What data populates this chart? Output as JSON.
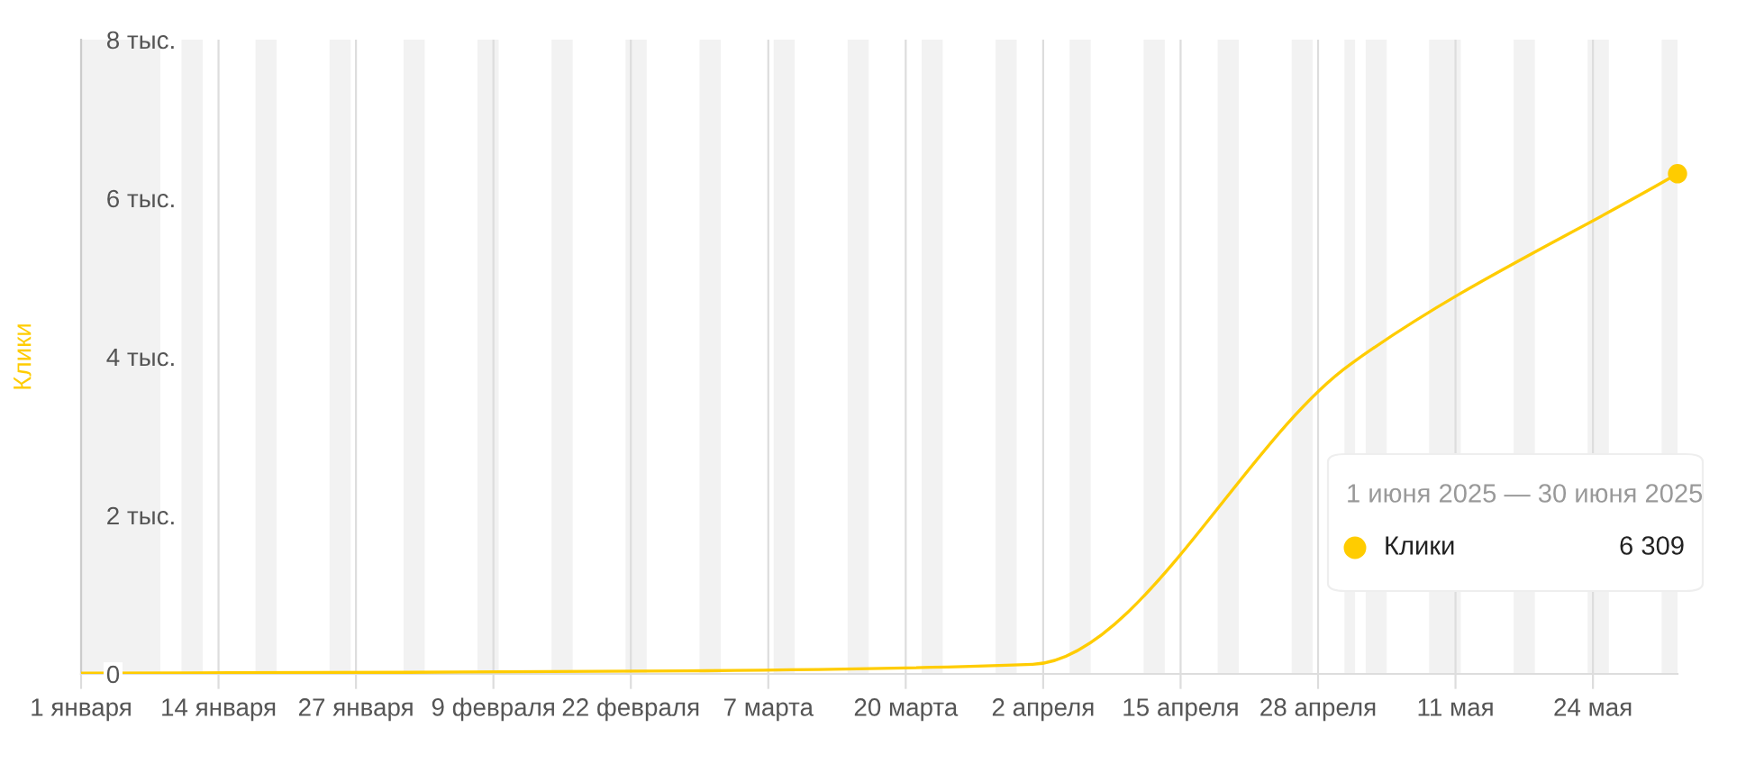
{
  "chart_data": {
    "type": "line",
    "ylabel": "Клики",
    "legend_title": "1 июня 2025 — 30 июня 2025",
    "legend": "right",
    "x": [
      "2025-01-01",
      "2025-02-01",
      "2025-03-01",
      "2025-04-01",
      "2025-05-01",
      "2025-06-01"
    ],
    "series": [
      {
        "name": "Клики",
        "color": "#ffcc00",
        "values": [
          0.01,
          0.02,
          0.04,
          0.12,
          3.9,
          6.309
        ]
      },
      {
        "type": "scatter",
        "marker": "circle",
        "color": "#ffcc00",
        "x": [
          "2025-06-01"
        ],
        "values": [
          6.309
        ]
      }
    ],
    "annotations": [
      "6 309"
    ],
    "xlim": [
      "2025-01-01",
      "2025-06-01"
    ],
    "xticks": [
      {
        "value": "2025-01-01",
        "label": "1 января"
      },
      {
        "value": "2025-01-14",
        "label": "14 января"
      },
      {
        "value": "2025-01-27",
        "label": "27 января"
      },
      {
        "value": "2025-02-09",
        "label": "9 февраля"
      },
      {
        "value": "2025-02-22",
        "label": "22 февраля"
      },
      {
        "value": "2025-03-07",
        "label": "7 марта"
      },
      {
        "value": "2025-03-20",
        "label": "20 марта"
      },
      {
        "value": "2025-04-02",
        "label": "2 апреля"
      },
      {
        "value": "2025-04-15",
        "label": "15 апреля"
      },
      {
        "value": "2025-04-28",
        "label": "28 апреля"
      },
      {
        "value": "2025-05-11",
        "label": "11 мая"
      },
      {
        "value": "2025-05-24",
        "label": "24 мая"
      }
    ],
    "ylim": [
      0,
      8
    ],
    "yticks": [
      0,
      {
        "value": 2,
        "label": "2 тыс."
      },
      {
        "value": 4,
        "label": "4 тыс."
      },
      {
        "value": 6,
        "label": "6 тыс."
      },
      {
        "value": 8,
        "label": "8 тыс."
      }
    ],
    "grid": "x",
    "line_style": "solid",
    "bands": [
      {
        "axis": "x",
        "from": "2025-01-01",
        "to": "2025-01-08T12:00",
        "color": "#f2f2f2"
      },
      {
        "axis": "x",
        "from": "2025-01-10T12:00",
        "to": "2025-01-12T12:00",
        "color": "#f2f2f2"
      },
      {
        "axis": "x",
        "from": "2025-01-17T12:00",
        "to": "2025-01-19T12:00",
        "color": "#f2f2f2"
      },
      {
        "axis": "x",
        "from": "2025-01-24T12:00",
        "to": "2025-01-26T12:00",
        "color": "#f2f2f2"
      },
      {
        "axis": "x",
        "from": "2025-01-31T12:00",
        "to": "2025-02-02T12:00",
        "color": "#f2f2f2"
      },
      {
        "axis": "x",
        "from": "2025-02-07T12:00",
        "to": "2025-02-09T12:00",
        "color": "#f2f2f2"
      },
      {
        "axis": "x",
        "from": "2025-02-14T12:00",
        "to": "2025-02-16T12:00",
        "color": "#f2f2f2"
      },
      {
        "axis": "x",
        "from": "2025-02-21T12:00",
        "to": "2025-02-23T12:00",
        "color": "#f2f2f2"
      },
      {
        "axis": "x",
        "from": "2025-02-28T12:00",
        "to": "2025-03-02T12:00",
        "color": "#f2f2f2"
      },
      {
        "axis": "x",
        "from": "2025-03-07T12:00",
        "to": "2025-03-09T12:00",
        "color": "#f2f2f2"
      },
      {
        "axis": "x",
        "from": "2025-03-14T12:00",
        "to": "2025-03-16T12:00",
        "color": "#f2f2f2"
      },
      {
        "axis": "x",
        "from": "2025-03-21T12:00",
        "to": "2025-03-23T12:00",
        "color": "#f2f2f2"
      },
      {
        "axis": "x",
        "from": "2025-03-28T12:00",
        "to": "2025-03-30T12:00",
        "color": "#f2f2f2"
      },
      {
        "axis": "x",
        "from": "2025-04-04T12:00",
        "to": "2025-04-06T12:00",
        "color": "#f2f2f2"
      },
      {
        "axis": "x",
        "from": "2025-04-11T12:00",
        "to": "2025-04-13T12:00",
        "color": "#f2f2f2"
      },
      {
        "axis": "x",
        "from": "2025-04-18T12:00",
        "to": "2025-04-20T12:00",
        "color": "#f2f2f2"
      },
      {
        "axis": "x",
        "from": "2025-04-25T12:00",
        "to": "2025-04-27T12:00",
        "color": "#f2f2f2"
      },
      {
        "axis": "x",
        "from": "2025-04-30T12:00",
        "to": "2025-05-01T12:00",
        "color": "#f2f2f2"
      },
      {
        "axis": "x",
        "from": "2025-05-02T12:00",
        "to": "2025-05-04T12:00",
        "color": "#f2f2f2"
      },
      {
        "axis": "x",
        "from": "2025-05-08T12:00",
        "to": "2025-05-11T12:00",
        "color": "#f2f2f2"
      },
      {
        "axis": "x",
        "from": "2025-05-16T12:00",
        "to": "2025-05-18T12:00",
        "color": "#f2f2f2"
      },
      {
        "axis": "x",
        "from": "2025-05-23T12:00",
        "to": "2025-05-25T12:00",
        "color": "#f2f2f2"
      },
      {
        "axis": "x",
        "from": "2025-05-30T12:00",
        "to": "2025-06-01",
        "color": "#f2f2f2"
      }
    ]
  }
}
